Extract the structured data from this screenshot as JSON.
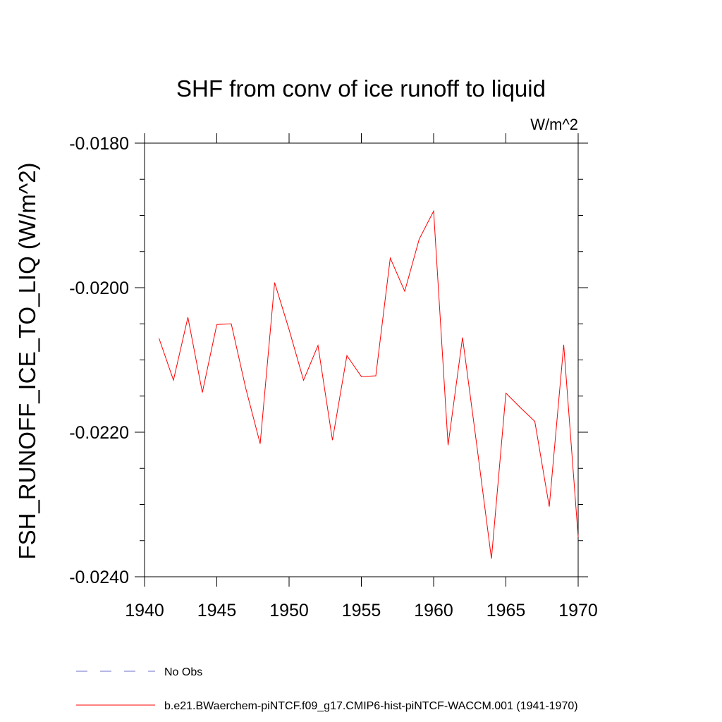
{
  "chart_data": {
    "type": "line",
    "title": "SHF from conv of ice runoff to liquid",
    "units": "W/m^2",
    "ylabel": "FSH_RUNOFF_ICE_TO_LIQ  (W/m^2)",
    "xlabel": "",
    "xlim": [
      1940,
      1970
    ],
    "ylim": [
      -0.024,
      -0.018
    ],
    "x_major_ticks": [
      1940,
      1945,
      1950,
      1955,
      1960,
      1965,
      1970
    ],
    "x_tick_labels": [
      "1940",
      "1945",
      "1950",
      "1955",
      "1960",
      "1965",
      "1970"
    ],
    "y_major_ticks": [
      -0.018,
      -0.02,
      -0.022,
      -0.024
    ],
    "y_tick_labels": [
      "-0.0180",
      "-0.0200",
      "-0.0220",
      "-0.0240"
    ],
    "y_minor_step": 0.0005,
    "x_minor_step": 1,
    "grid": false,
    "legend_position": "bottom-left",
    "series": [
      {
        "name": "No Obs",
        "color": "#6f6fc8",
        "style": "dashed",
        "x": [],
        "values": []
      },
      {
        "name": "b.e21.BWaerchem-piNTCF.f09_g17.CMIP6-hist-piNTCF-WACCM.001 (1941-1970)",
        "color": "#ff0000",
        "style": "solid",
        "x": [
          1941,
          1942,
          1943,
          1944,
          1945,
          1946,
          1947,
          1948,
          1949,
          1950,
          1951,
          1952,
          1953,
          1954,
          1955,
          1956,
          1957,
          1958,
          1959,
          1960,
          1961,
          1962,
          1963,
          1964,
          1965,
          1966,
          1967,
          1968,
          1969,
          1970
        ],
        "values": [
          -0.0207,
          -0.02128,
          -0.02041,
          -0.02145,
          -0.02051,
          -0.0205,
          -0.02139,
          -0.02216,
          -0.01993,
          -0.02058,
          -0.02128,
          -0.0208,
          -0.02211,
          -0.02094,
          -0.02123,
          -0.02122,
          -0.01959,
          -0.02005,
          -0.01933,
          -0.01894,
          -0.02218,
          -0.02069,
          -0.0222,
          -0.02375,
          -0.02146,
          -0.02166,
          -0.02185,
          -0.02303,
          -0.02079,
          -0.02345
        ]
      }
    ]
  }
}
